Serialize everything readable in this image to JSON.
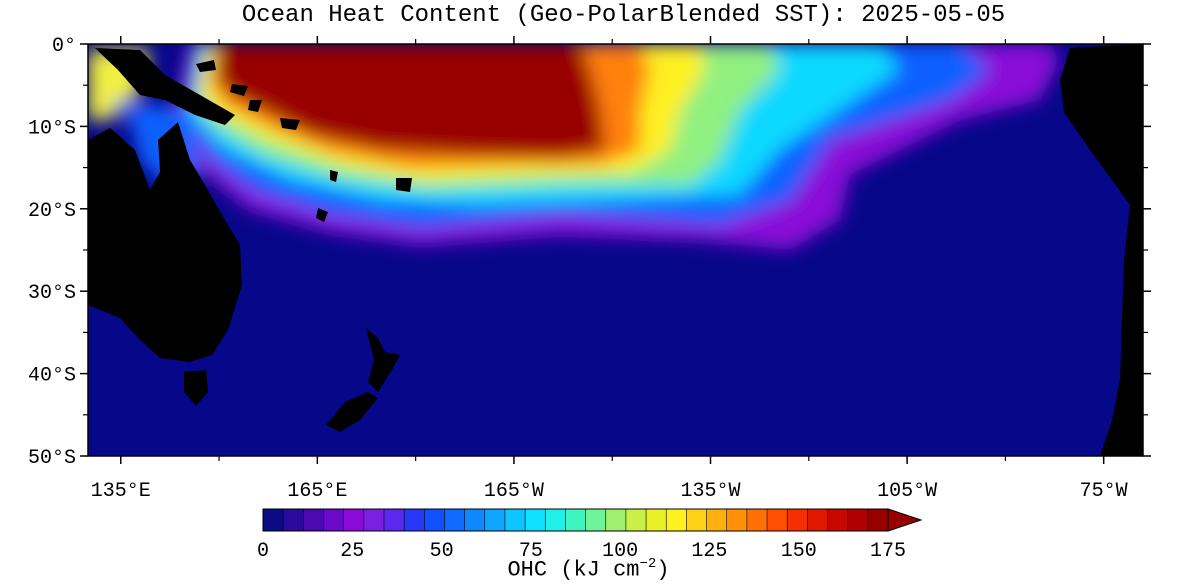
{
  "map": {
    "title": "Ocean Heat Content (Geo-PolarBlended SST): 2025-05-05",
    "lat_ticks": [
      "0°",
      "10°S",
      "20°S",
      "30°S",
      "40°S",
      "50°S"
    ],
    "lon_ticks": [
      "135°E",
      "165°E",
      "165°W",
      "135°W",
      "105°W",
      "75°W"
    ],
    "extent": {
      "lon_min_east": 130,
      "lon_max_east": 291,
      "lat_min": -50,
      "lat_max": 0
    },
    "land_color": "#000000",
    "ocean_background_color": "#07078a"
  },
  "colorbar": {
    "label_main": "OHC (kJ cm",
    "label_exp": "−2",
    "label_close": ")",
    "tick_labels": [
      "0",
      "25",
      "50",
      "75",
      "100",
      "125",
      "150",
      "175"
    ],
    "min": 0,
    "max": 175,
    "extend": "max",
    "colors": [
      "#0a0a82",
      "#2a0a9a",
      "#4a0ab0",
      "#6a0ac8",
      "#8a0ad8",
      "#7a20e0",
      "#5a28ee",
      "#2838f8",
      "#1050ff",
      "#106aff",
      "#1088ff",
      "#10a6ff",
      "#10c4ff",
      "#10e0ff",
      "#20f0e8",
      "#40f4c0",
      "#70f498",
      "#a0f070",
      "#c8f048",
      "#e8f028",
      "#fff020",
      "#ffd018",
      "#ffb010",
      "#ff9008",
      "#ff7004",
      "#ff5000",
      "#f43000",
      "#e01800",
      "#c80800",
      "#b00000",
      "#980000"
    ]
  }
}
